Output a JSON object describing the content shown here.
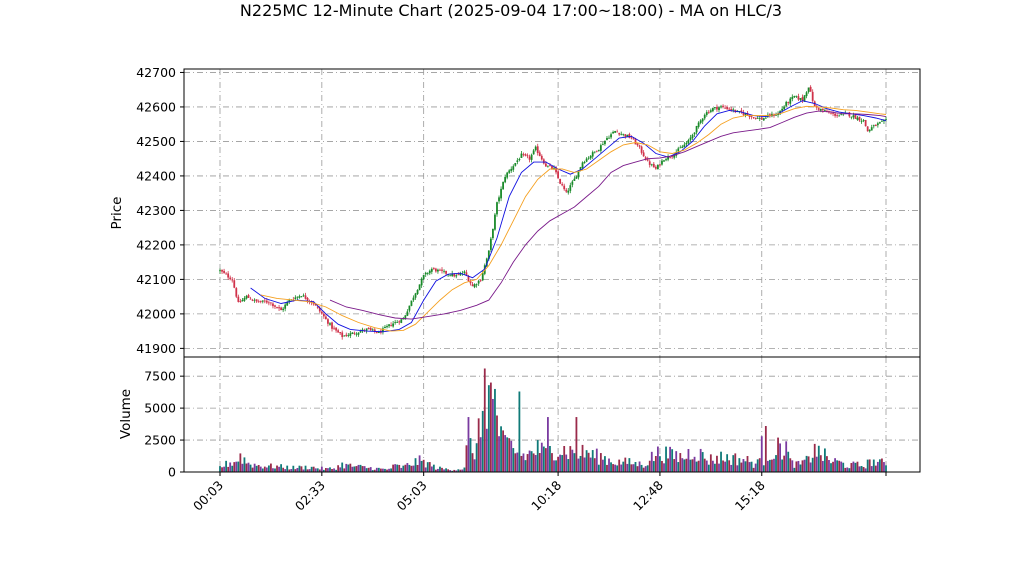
{
  "chart_data": {
    "type": "candlestick",
    "title": "N225MC 12-Minute Chart (2025-09-04 17:00~18:00) - MA on HLC/3",
    "price_panel": {
      "ylabel": "Price",
      "ylim": [
        41875,
        42710
      ],
      "yticks": [
        41900,
        42000,
        42100,
        42200,
        42300,
        42400,
        42500,
        42600,
        42700
      ],
      "grid": true
    },
    "volume_panel": {
      "ylabel": "Volume",
      "ylim": [
        0,
        9000
      ],
      "yticks": [
        0,
        2500,
        5000,
        7500
      ],
      "grid": true
    },
    "x_tick_labels": [
      "00:03",
      "02:33",
      "05:03",
      "10:18",
      "12:48",
      "15:18"
    ],
    "candle_colors": {
      "up": "#1a8a2a",
      "down": "#d0324a"
    },
    "volume_colors": [
      "#0f7a78",
      "#9a2a4a",
      "#7a3aa0"
    ],
    "close_path": [
      [
        0,
        42125
      ],
      [
        6,
        42100
      ],
      [
        9,
        42030
      ],
      [
        13,
        42050
      ],
      [
        18,
        42035
      ],
      [
        24,
        42035
      ],
      [
        30,
        42010
      ],
      [
        34,
        42040
      ],
      [
        40,
        42055
      ],
      [
        46,
        42030
      ],
      [
        50,
        42000
      ],
      [
        55,
        41960
      ],
      [
        60,
        41935
      ],
      [
        66,
        41945
      ],
      [
        72,
        41955
      ],
      [
        78,
        41945
      ],
      [
        84,
        41970
      ],
      [
        90,
        41985
      ],
      [
        95,
        42050
      ],
      [
        100,
        42110
      ],
      [
        104,
        42130
      ],
      [
        110,
        42120
      ],
      [
        116,
        42110
      ],
      [
        120,
        42120
      ],
      [
        124,
        42080
      ],
      [
        128,
        42100
      ],
      [
        132,
        42180
      ],
      [
        136,
        42320
      ],
      [
        140,
        42400
      ],
      [
        144,
        42430
      ],
      [
        148,
        42460
      ],
      [
        152,
        42450
      ],
      [
        155,
        42480
      ],
      [
        160,
        42430
      ],
      [
        164,
        42420
      ],
      [
        167,
        42380
      ],
      [
        170,
        42350
      ],
      [
        174,
        42390
      ],
      [
        178,
        42440
      ],
      [
        182,
        42460
      ],
      [
        186,
        42480
      ],
      [
        190,
        42510
      ],
      [
        194,
        42530
      ],
      [
        198,
        42520
      ],
      [
        202,
        42510
      ],
      [
        206,
        42480
      ],
      [
        210,
        42440
      ],
      [
        214,
        42420
      ],
      [
        218,
        42450
      ],
      [
        222,
        42460
      ],
      [
        226,
        42480
      ],
      [
        230,
        42500
      ],
      [
        234,
        42540
      ],
      [
        238,
        42580
      ],
      [
        242,
        42595
      ],
      [
        246,
        42600
      ],
      [
        250,
        42595
      ],
      [
        254,
        42585
      ],
      [
        258,
        42580
      ],
      [
        262,
        42570
      ],
      [
        266,
        42565
      ],
      [
        270,
        42575
      ],
      [
        274,
        42580
      ],
      [
        278,
        42610
      ],
      [
        282,
        42630
      ],
      [
        286,
        42620
      ],
      [
        289,
        42660
      ],
      [
        292,
        42600
      ],
      [
        296,
        42590
      ],
      [
        300,
        42580
      ],
      [
        304,
        42575
      ],
      [
        308,
        42580
      ],
      [
        312,
        42570
      ],
      [
        316,
        42560
      ],
      [
        318,
        42530
      ],
      [
        320,
        42540
      ],
      [
        323,
        42550
      ],
      [
        327,
        42560
      ]
    ],
    "ma_blue": [
      [
        15,
        42075
      ],
      [
        22,
        42045
      ],
      [
        30,
        42030
      ],
      [
        38,
        42040
      ],
      [
        46,
        42035
      ],
      [
        52,
        42000
      ],
      [
        58,
        41970
      ],
      [
        64,
        41955
      ],
      [
        72,
        41950
      ],
      [
        80,
        41948
      ],
      [
        88,
        41955
      ],
      [
        94,
        41975
      ],
      [
        100,
        42040
      ],
      [
        106,
        42095
      ],
      [
        112,
        42115
      ],
      [
        118,
        42118
      ],
      [
        124,
        42105
      ],
      [
        130,
        42130
      ],
      [
        136,
        42220
      ],
      [
        142,
        42340
      ],
      [
        148,
        42410
      ],
      [
        154,
        42440
      ],
      [
        160,
        42440
      ],
      [
        166,
        42420
      ],
      [
        172,
        42405
      ],
      [
        178,
        42420
      ],
      [
        184,
        42450
      ],
      [
        190,
        42480
      ],
      [
        196,
        42510
      ],
      [
        202,
        42515
      ],
      [
        208,
        42495
      ],
      [
        214,
        42465
      ],
      [
        220,
        42455
      ],
      [
        226,
        42470
      ],
      [
        232,
        42500
      ],
      [
        238,
        42545
      ],
      [
        244,
        42580
      ],
      [
        250,
        42590
      ],
      [
        256,
        42585
      ],
      [
        262,
        42575
      ],
      [
        268,
        42572
      ],
      [
        274,
        42580
      ],
      [
        280,
        42600
      ],
      [
        286,
        42618
      ],
      [
        292,
        42610
      ],
      [
        298,
        42595
      ],
      [
        304,
        42585
      ],
      [
        310,
        42580
      ],
      [
        316,
        42575
      ],
      [
        322,
        42568
      ],
      [
        327,
        42560
      ]
    ],
    "ma_orange": [
      [
        20,
        42055
      ],
      [
        28,
        42045
      ],
      [
        36,
        42040
      ],
      [
        44,
        42035
      ],
      [
        52,
        42020
      ],
      [
        60,
        41995
      ],
      [
        68,
        41975
      ],
      [
        76,
        41960
      ],
      [
        84,
        41950
      ],
      [
        90,
        41952
      ],
      [
        96,
        41970
      ],
      [
        102,
        42005
      ],
      [
        108,
        42040
      ],
      [
        114,
        42070
      ],
      [
        120,
        42090
      ],
      [
        126,
        42100
      ],
      [
        132,
        42140
      ],
      [
        138,
        42200
      ],
      [
        144,
        42270
      ],
      [
        150,
        42340
      ],
      [
        156,
        42390
      ],
      [
        162,
        42420
      ],
      [
        168,
        42420
      ],
      [
        174,
        42410
      ],
      [
        180,
        42420
      ],
      [
        186,
        42445
      ],
      [
        192,
        42470
      ],
      [
        198,
        42490
      ],
      [
        204,
        42497
      ],
      [
        210,
        42490
      ],
      [
        216,
        42470
      ],
      [
        222,
        42465
      ],
      [
        228,
        42475
      ],
      [
        234,
        42495
      ],
      [
        240,
        42520
      ],
      [
        246,
        42550
      ],
      [
        252,
        42568
      ],
      [
        258,
        42575
      ],
      [
        264,
        42575
      ],
      [
        270,
        42575
      ],
      [
        276,
        42582
      ],
      [
        282,
        42595
      ],
      [
        288,
        42602
      ],
      [
        294,
        42600
      ],
      [
        300,
        42597
      ],
      [
        306,
        42592
      ],
      [
        312,
        42590
      ],
      [
        318,
        42585
      ],
      [
        324,
        42580
      ],
      [
        327,
        42578
      ]
    ],
    "ma_purple": [
      [
        54,
        42040
      ],
      [
        62,
        42020
      ],
      [
        70,
        42010
      ],
      [
        78,
        41998
      ],
      [
        86,
        41988
      ],
      [
        94,
        41985
      ],
      [
        102,
        41992
      ],
      [
        110,
        42000
      ],
      [
        118,
        42010
      ],
      [
        126,
        42025
      ],
      [
        132,
        42040
      ],
      [
        138,
        42090
      ],
      [
        144,
        42150
      ],
      [
        150,
        42200
      ],
      [
        156,
        42240
      ],
      [
        162,
        42270
      ],
      [
        168,
        42290
      ],
      [
        174,
        42310
      ],
      [
        180,
        42340
      ],
      [
        186,
        42370
      ],
      [
        192,
        42410
      ],
      [
        198,
        42430
      ],
      [
        204,
        42440
      ],
      [
        210,
        42450
      ],
      [
        216,
        42452
      ],
      [
        222,
        42458
      ],
      [
        228,
        42470
      ],
      [
        234,
        42485
      ],
      [
        240,
        42500
      ],
      [
        246,
        42515
      ],
      [
        252,
        42525
      ],
      [
        258,
        42530
      ],
      [
        264,
        42535
      ],
      [
        270,
        42540
      ],
      [
        276,
        42555
      ],
      [
        282,
        42570
      ],
      [
        288,
        42582
      ],
      [
        294,
        42588
      ],
      [
        300,
        42585
      ],
      [
        306,
        42580
      ],
      [
        312,
        42580
      ],
      [
        318,
        42578
      ],
      [
        324,
        42575
      ],
      [
        327,
        42572
      ]
    ],
    "ma_colors": [
      "#1010e0",
      "#f5a020",
      "#7a1a8a"
    ],
    "volume_path": [
      [
        0,
        400
      ],
      [
        4,
        700
      ],
      [
        8,
        900
      ],
      [
        10,
        1300
      ],
      [
        14,
        700
      ],
      [
        20,
        500
      ],
      [
        28,
        450
      ],
      [
        36,
        350
      ],
      [
        44,
        400
      ],
      [
        52,
        250
      ],
      [
        56,
        300
      ],
      [
        60,
        600
      ],
      [
        64,
        500
      ],
      [
        70,
        400
      ],
      [
        76,
        300
      ],
      [
        82,
        200
      ],
      [
        86,
        500
      ],
      [
        90,
        400
      ],
      [
        94,
        700
      ],
      [
        98,
        900
      ],
      [
        102,
        700
      ],
      [
        106,
        350
      ],
      [
        110,
        250
      ],
      [
        114,
        200
      ],
      [
        118,
        250
      ],
      [
        120,
        300
      ],
      [
        122,
        3000
      ],
      [
        124,
        1200
      ],
      [
        128,
        3500
      ],
      [
        130,
        7000
      ],
      [
        132,
        6000
      ],
      [
        134,
        5200
      ],
      [
        136,
        4200
      ],
      [
        138,
        2800
      ],
      [
        140,
        2000
      ],
      [
        142,
        2300
      ],
      [
        146,
        1500
      ],
      [
        150,
        1300
      ],
      [
        156,
        1900
      ],
      [
        160,
        1500
      ],
      [
        164,
        2000
      ],
      [
        168,
        1800
      ],
      [
        172,
        1700
      ],
      [
        176,
        1500
      ],
      [
        180,
        1600
      ],
      [
        184,
        1300
      ],
      [
        188,
        1200
      ],
      [
        192,
        900
      ],
      [
        196,
        800
      ],
      [
        200,
        800
      ],
      [
        204,
        700
      ],
      [
        208,
        600
      ],
      [
        212,
        1200
      ],
      [
        216,
        1600
      ],
      [
        220,
        1400
      ],
      [
        224,
        1300
      ],
      [
        228,
        1200
      ],
      [
        232,
        1800
      ],
      [
        236,
        1400
      ],
      [
        240,
        1000
      ],
      [
        246,
        1200
      ],
      [
        252,
        1100
      ],
      [
        258,
        1000
      ],
      [
        262,
        700
      ],
      [
        266,
        800
      ],
      [
        270,
        1600
      ],
      [
        274,
        1900
      ],
      [
        278,
        2100
      ],
      [
        280,
        800
      ],
      [
        284,
        600
      ],
      [
        288,
        900
      ],
      [
        292,
        1700
      ],
      [
        296,
        1400
      ],
      [
        300,
        900
      ],
      [
        304,
        800
      ],
      [
        308,
        500
      ],
      [
        312,
        600
      ],
      [
        316,
        500
      ],
      [
        320,
        900
      ],
      [
        324,
        700
      ],
      [
        327,
        900
      ]
    ],
    "volume_spikes": [
      [
        122,
        4300
      ],
      [
        130,
        8100
      ],
      [
        133,
        7000
      ],
      [
        135,
        6500
      ],
      [
        147,
        6300
      ],
      [
        161,
        4300
      ],
      [
        175,
        4300
      ],
      [
        266,
        2800
      ],
      [
        268,
        3600
      ],
      [
        292,
        2200
      ]
    ]
  }
}
